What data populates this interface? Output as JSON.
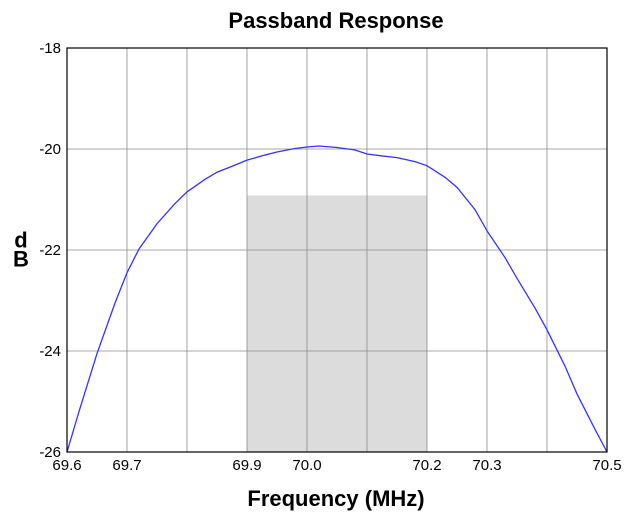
{
  "chart_data": {
    "type": "line",
    "title": "Passband Response",
    "xlabel": "Frequency (MHz)",
    "ylabel": "dB",
    "xlim": [
      69.6,
      70.5
    ],
    "ylim": [
      -26,
      -18
    ],
    "xticks": [
      69.6,
      69.7,
      69.8,
      69.9,
      70.0,
      70.1,
      70.2,
      70.3,
      70.4,
      70.5
    ],
    "xtick_labels": [
      "69.6",
      "69.7",
      "",
      "69.9",
      "70.0",
      "",
      "70.2",
      "70.3",
      "",
      "70.5"
    ],
    "yticks": [
      -26,
      -24,
      -22,
      -20,
      -18
    ],
    "ytick_labels": [
      "-26",
      "-24",
      "-22",
      "-20",
      "-18"
    ],
    "grid": true,
    "shaded_region": {
      "x": [
        69.9,
        70.2
      ],
      "y": [
        -26,
        -20.92
      ],
      "color": "#dcdcdc"
    },
    "series": [
      {
        "color": "#3333ff",
        "x": [
          69.6,
          69.62,
          69.65,
          69.68,
          69.7,
          69.72,
          69.75,
          69.78,
          69.8,
          69.83,
          69.85,
          69.88,
          69.9,
          69.93,
          69.95,
          69.98,
          70.0,
          70.02,
          70.05,
          70.08,
          70.1,
          70.12,
          70.15,
          70.18,
          70.2,
          70.23,
          70.25,
          70.28,
          70.3,
          70.33,
          70.35,
          70.38,
          70.4,
          70.43,
          70.45,
          70.48,
          70.5
        ],
        "y": [
          -26.0,
          -25.2,
          -24.05,
          -23.05,
          -22.45,
          -21.98,
          -21.48,
          -21.08,
          -20.85,
          -20.6,
          -20.46,
          -20.32,
          -20.22,
          -20.12,
          -20.06,
          -19.99,
          -19.96,
          -19.94,
          -19.97,
          -20.02,
          -20.1,
          -20.13,
          -20.17,
          -20.25,
          -20.33,
          -20.56,
          -20.76,
          -21.2,
          -21.62,
          -22.15,
          -22.56,
          -23.15,
          -23.58,
          -24.3,
          -24.85,
          -25.55,
          -26.0
        ]
      }
    ]
  }
}
